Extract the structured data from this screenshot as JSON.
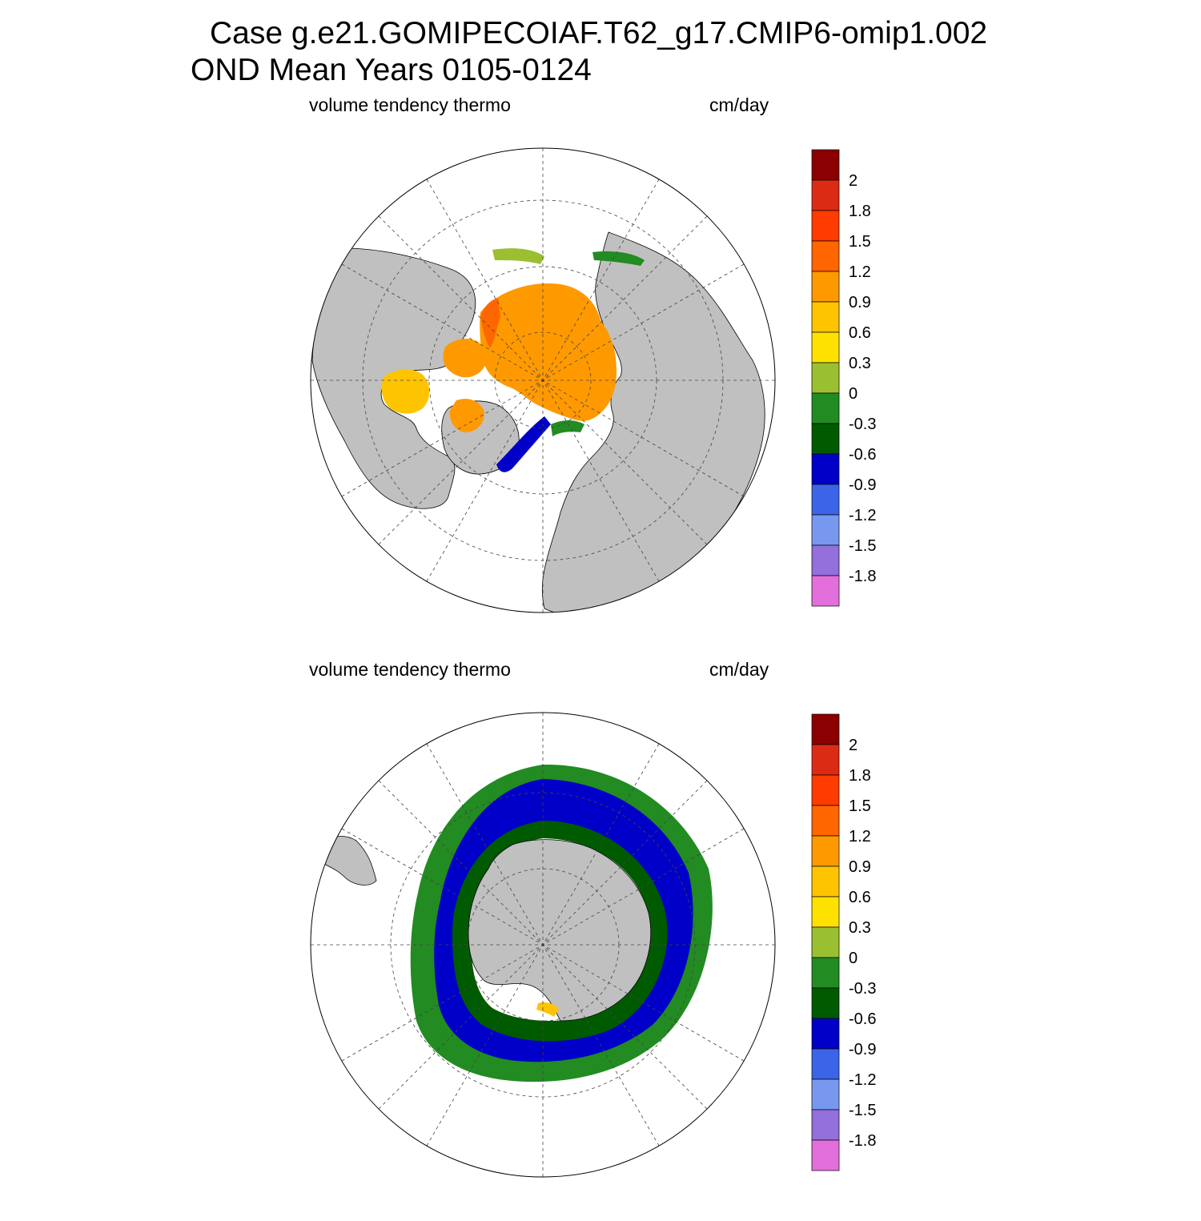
{
  "title": {
    "line1": "Case g.e21.GOMIPECOIAF.T62_g17.CMIP6-omip1.002",
    "line2": "OND Mean   Years 0105-0124"
  },
  "panels": [
    {
      "id": "north",
      "left_label": "volume tendency thermo",
      "right_label": "cm/day"
    },
    {
      "id": "south",
      "left_label": "volume tendency thermo",
      "right_label": "cm/day"
    }
  ],
  "colorbar": {
    "labels": [
      "2",
      "1.8",
      "1.5",
      "1.2",
      "0.9",
      "0.6",
      "0.3",
      "0",
      "-0.3",
      "-0.6",
      "-0.9",
      "-1.2",
      "-1.5",
      "-1.8"
    ],
    "colors": [
      "#8b0000",
      "#dc2b14",
      "#ff3c00",
      "#ff6600",
      "#ff9900",
      "#ffc400",
      "#ffe100",
      "#9ac032",
      "#228b22",
      "#005a00",
      "#0000c8",
      "#3c64e6",
      "#7898f0",
      "#9370db",
      "#e36fdc"
    ]
  },
  "colors": {
    "land": "#c0c0c0",
    "ocean": "#ffffff",
    "grid": "#444444"
  }
}
